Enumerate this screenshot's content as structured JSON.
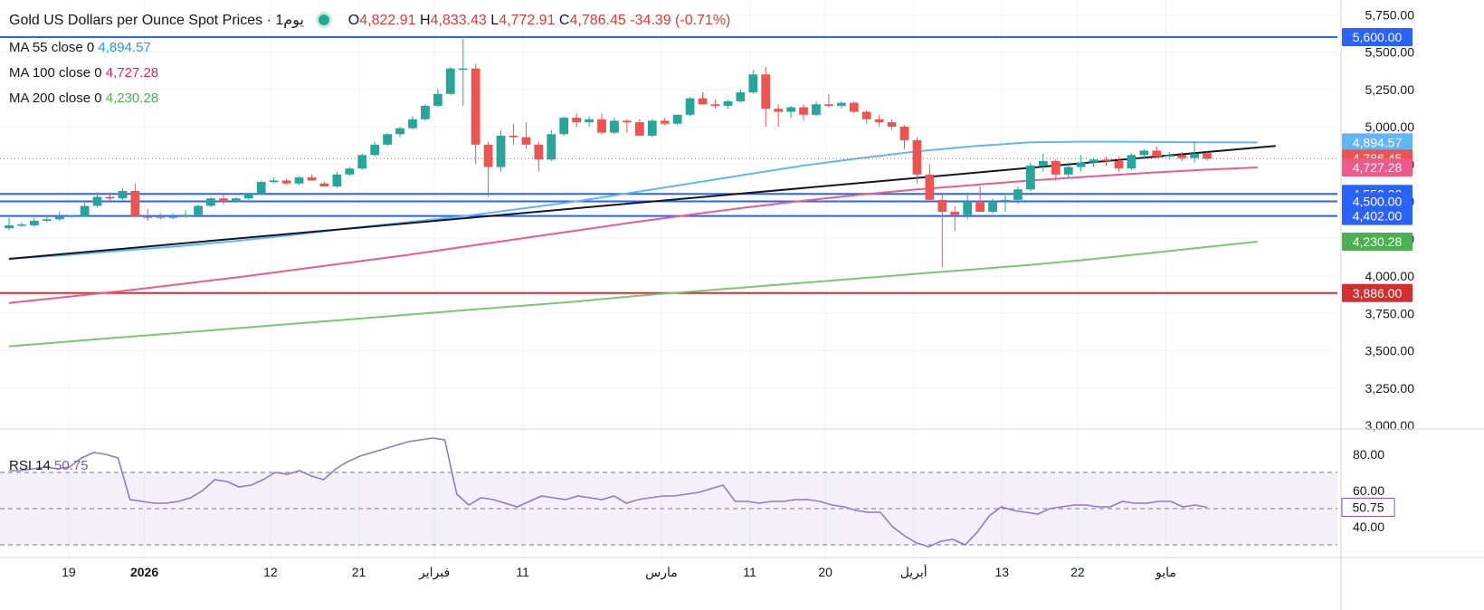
{
  "header": {
    "title": "Gold US Dollars per Ounce Spot Prices",
    "timeframe": "يوم1",
    "open_label": "O",
    "open": "4,822.91",
    "high_label": "H",
    "high": "4,833.43",
    "low_label": "L",
    "low": "4,772.91",
    "close_label": "C",
    "close": "4,786.45",
    "change": "-34.39 (-0.71%)"
  },
  "legends": {
    "ma55_label": "MA 55 close 0",
    "ma55_value": "4,894.57",
    "ma100_label": "MA 100 close 0",
    "ma100_value": "4,727.28",
    "ma200_label": "MA 200 close 0",
    "ma200_value": "4,230.28",
    "rsi_label": "RSI 14",
    "rsi_value": "50.75"
  },
  "colors": {
    "up": "#26a69a",
    "down": "#ef5350",
    "ma55": "#64b5f6",
    "ma100": "#ec5b8a",
    "ma200": "#7cc576",
    "rsi": "#8e7cc3",
    "hline_blue": "#2962ff",
    "hline_red": "#d32f2f"
  },
  "chart_data": [
    {
      "type": "candlestick",
      "title": "Gold US Dollars per Ounce Spot Prices",
      "ylim": [
        3000,
        5800
      ],
      "y_ticks": [
        3000,
        3250,
        3500,
        3750,
        4000,
        4250,
        4500,
        4750,
        5000,
        5250,
        5500,
        5750
      ],
      "y_tick_labels": [
        "3,000.00",
        "3,250.00",
        "3,500.00",
        "3,750.00",
        "4,000.00",
        "4,250.00",
        "4,500.00",
        "4,750.00",
        "5,000.00",
        "5,250.00",
        "5,500.00",
        "5,750.00"
      ],
      "x_tick_labels": [
        "19",
        "2026",
        "12",
        "21",
        "فبراير",
        "11",
        "مارس",
        "11",
        "20",
        "أبريل",
        "13",
        "22",
        "مايو"
      ],
      "x_tick_index": [
        1,
        7,
        17,
        24,
        30,
        37,
        48,
        55,
        61,
        68,
        75,
        81,
        88
      ],
      "grid": true,
      "candles": [
        [
          4320,
          4390,
          4310,
          4340
        ],
        [
          4340,
          4360,
          4330,
          4345
        ],
        [
          4340,
          4390,
          4330,
          4370
        ],
        [
          4370,
          4400,
          4360,
          4380
        ],
        [
          4380,
          4430,
          4370,
          4400
        ],
        [
          4400,
          4410,
          4390,
          4405
        ],
        [
          4400,
          4500,
          4400,
          4470
        ],
        [
          4470,
          4560,
          4460,
          4530
        ],
        [
          4530,
          4560,
          4500,
          4520
        ],
        [
          4520,
          4590,
          4510,
          4570
        ],
        [
          4570,
          4620,
          4400,
          4400
        ],
        [
          4400,
          4450,
          4370,
          4390
        ],
        [
          4400,
          4420,
          4380,
          4390
        ],
        [
          4390,
          4420,
          4380,
          4400
        ],
        [
          4400,
          4440,
          4390,
          4410
        ],
        [
          4410,
          4480,
          4400,
          4470
        ],
        [
          4470,
          4530,
          4460,
          4520
        ],
        [
          4520,
          4550,
          4480,
          4500
        ],
        [
          4500,
          4530,
          4490,
          4520
        ],
        [
          4520,
          4560,
          4510,
          4550
        ],
        [
          4550,
          4640,
          4540,
          4630
        ],
        [
          4630,
          4660,
          4620,
          4640
        ],
        [
          4640,
          4650,
          4610,
          4620
        ],
        [
          4620,
          4670,
          4610,
          4660
        ],
        [
          4660,
          4680,
          4640,
          4640
        ],
        [
          4620,
          4630,
          4600,
          4600
        ],
        [
          4600,
          4700,
          4590,
          4680
        ],
        [
          4680,
          4730,
          4670,
          4720
        ],
        [
          4720,
          4820,
          4710,
          4810
        ],
        [
          4810,
          4900,
          4800,
          4880
        ],
        [
          4880,
          4960,
          4870,
          4950
        ],
        [
          4950,
          5000,
          4930,
          4990
        ],
        [
          4990,
          5070,
          4980,
          5050
        ],
        [
          5050,
          5150,
          5040,
          5140
        ],
        [
          5140,
          5250,
          5130,
          5220
        ],
        [
          5220,
          5400,
          5210,
          5390
        ],
        [
          5390,
          5590,
          5140,
          5390
        ],
        [
          5390,
          5420,
          4750,
          4880
        ],
        [
          4880,
          4900,
          4530,
          4730
        ],
        [
          4730,
          4980,
          4700,
          4940
        ],
        [
          4940,
          5020,
          4880,
          4930
        ],
        [
          4930,
          5030,
          4850,
          4880
        ],
        [
          4880,
          4900,
          4700,
          4780
        ],
        [
          4780,
          4980,
          4770,
          4950
        ],
        [
          4950,
          5070,
          4940,
          5060
        ],
        [
          5060,
          5090,
          5000,
          5030
        ],
        [
          5030,
          5070,
          5000,
          5050
        ],
        [
          5050,
          5090,
          4950,
          4960
        ],
        [
          4960,
          5060,
          4950,
          5040
        ],
        [
          5040,
          5050,
          4960,
          5030
        ],
        [
          5030,
          5050,
          4940,
          4940
        ],
        [
          4940,
          5050,
          4930,
          5040
        ],
        [
          5040,
          5060,
          5010,
          5020
        ],
        [
          5020,
          5080,
          5010,
          5080
        ],
        [
          5080,
          5200,
          5070,
          5190
        ],
        [
          5190,
          5230,
          5150,
          5150
        ],
        [
          5150,
          5180,
          5120,
          5140
        ],
        [
          5140,
          5180,
          5120,
          5170
        ],
        [
          5170,
          5250,
          5160,
          5230
        ],
        [
          5230,
          5380,
          5220,
          5350
        ],
        [
          5350,
          5400,
          5000,
          5120
        ],
        [
          5120,
          5150,
          5000,
          5100
        ],
        [
          5100,
          5140,
          5060,
          5130
        ],
        [
          5130,
          5150,
          5040,
          5080
        ],
        [
          5080,
          5170,
          5070,
          5150
        ],
        [
          5150,
          5220,
          5130,
          5140
        ],
        [
          5140,
          5170,
          5120,
          5160
        ],
        [
          5160,
          5170,
          5090,
          5100
        ],
        [
          5100,
          5110,
          5020,
          5050
        ],
        [
          5050,
          5080,
          5000,
          5030
        ],
        [
          5030,
          5050,
          4980,
          5000
        ],
        [
          5000,
          5010,
          4850,
          4910
        ],
        [
          4910,
          4930,
          4620,
          4680
        ],
        [
          4680,
          4750,
          4500,
          4510
        ],
        [
          4510,
          4550,
          4060,
          4430
        ],
        [
          4430,
          4470,
          4300,
          4410
        ],
        [
          4410,
          4560,
          4380,
          4500
        ],
        [
          4500,
          4600,
          4430,
          4430
        ],
        [
          4430,
          4520,
          4420,
          4500
        ],
        [
          4500,
          4540,
          4430,
          4510
        ],
        [
          4510,
          4600,
          4480,
          4580
        ],
        [
          4580,
          4760,
          4570,
          4740
        ],
        [
          4740,
          4820,
          4700,
          4770
        ],
        [
          4770,
          4780,
          4640,
          4680
        ],
        [
          4680,
          4760,
          4660,
          4730
        ],
        [
          4730,
          4810,
          4700,
          4760
        ],
        [
          4760,
          4790,
          4730,
          4780
        ],
        [
          4780,
          4800,
          4740,
          4770
        ],
        [
          4770,
          4800,
          4700,
          4720
        ],
        [
          4720,
          4820,
          4710,
          4810
        ],
        [
          4810,
          4850,
          4780,
          4840
        ],
        [
          4840,
          4870,
          4790,
          4800
        ],
        [
          4800,
          4830,
          4780,
          4810
        ],
        [
          4810,
          4830,
          4770,
          4790
        ],
        [
          4790,
          4900,
          4760,
          4820
        ],
        [
          4822.91,
          4833.43,
          4772.91,
          4786.45
        ]
      ],
      "series": [
        {
          "name": "MA 55 close 0",
          "start_index": 0,
          "end_index": 99,
          "values": [
            4115,
            4140,
            4170,
            4200,
            4235,
            4275,
            4320,
            4360,
            4400,
            4450,
            4500,
            4560,
            4620,
            4680,
            4740,
            4790,
            4835,
            4870,
            4895,
            4900,
            4898,
            4895,
            4894.57
          ]
        },
        {
          "name": "MA 100 close 0",
          "start_index": 0,
          "end_index": 99,
          "values": [
            3820,
            3860,
            3900,
            3945,
            3990,
            4040,
            4090,
            4140,
            4195,
            4250,
            4305,
            4360,
            4410,
            4460,
            4505,
            4545,
            4580,
            4610,
            4640,
            4665,
            4690,
            4710,
            4727.28
          ]
        },
        {
          "name": "MA 200 close 0",
          "start_index": 0,
          "end_index": 99,
          "values": [
            3530,
            3560,
            3590,
            3620,
            3650,
            3680,
            3710,
            3740,
            3770,
            3800,
            3830,
            3865,
            3895,
            3925,
            3955,
            3985,
            4015,
            4045,
            4075,
            4110,
            4150,
            4190,
            4230.28
          ]
        }
      ],
      "trendline": {
        "from": [
          0,
          4115
        ],
        "to": [
          99,
          4835
        ]
      },
      "price_labels": [
        {
          "value": 5600,
          "text": "5,600.00",
          "color": "#2962ff"
        },
        {
          "value": 4894.57,
          "text": "4,894.57",
          "color": "#64b5f6"
        },
        {
          "value": 4786.45,
          "text": "4,786.45",
          "color": "#ef5350"
        },
        {
          "value": 4727.28,
          "text": "4,727.28",
          "color": "#ec5b8a"
        },
        {
          "value": 4550,
          "text": "4,550.00",
          "color": "#2962ff"
        },
        {
          "value": 4500,
          "text": "4,500.00",
          "color": "#2962ff"
        },
        {
          "value": 4402,
          "text": "4,402.00",
          "color": "#2962ff"
        },
        {
          "value": 4230.28,
          "text": "4,230.28",
          "color": "#4caf50"
        },
        {
          "value": 3886,
          "text": "3,886.00",
          "color": "#d32f2f"
        }
      ],
      "horizontal_lines": [
        {
          "value": 5600,
          "color": "#2962ff"
        },
        {
          "value": 4550,
          "color": "#2962ff"
        },
        {
          "value": 4500,
          "color": "#2962ff"
        },
        {
          "value": 4402,
          "color": "#2962ff"
        },
        {
          "value": 3886,
          "color": "#d32f2f"
        }
      ]
    },
    {
      "type": "line",
      "title": "RSI 14",
      "ylim": [
        25,
        92
      ],
      "y_ticks": [
        40,
        60,
        80
      ],
      "y_tick_labels": [
        "40.00",
        "60.00",
        "80.00"
      ],
      "band": [
        30,
        70
      ],
      "midline": 50,
      "series": [
        {
          "name": "RSI 14",
          "values": [
            71,
            71,
            72,
            73,
            72,
            73,
            78,
            81,
            80,
            78,
            55,
            54,
            53,
            53,
            54,
            56,
            60,
            66,
            65,
            62,
            63,
            66,
            70,
            69,
            71,
            68,
            66,
            72,
            76,
            79,
            81,
            83,
            85,
            87,
            88,
            89,
            88,
            58,
            52,
            56,
            55,
            53,
            51,
            54,
            57,
            56,
            55,
            57,
            56,
            55,
            57,
            53,
            55,
            56,
            57,
            57,
            58,
            59,
            61,
            63,
            54,
            54,
            53,
            54,
            54,
            55,
            55,
            54,
            52,
            51,
            49,
            48,
            48,
            40,
            35,
            31,
            29,
            32,
            33,
            30,
            37,
            46,
            51,
            49,
            48,
            47,
            50,
            51,
            52,
            52,
            51,
            51,
            54,
            53,
            53,
            54,
            54,
            51,
            52,
            50.75
          ]
        }
      ],
      "current_value": 50.75
    }
  ]
}
